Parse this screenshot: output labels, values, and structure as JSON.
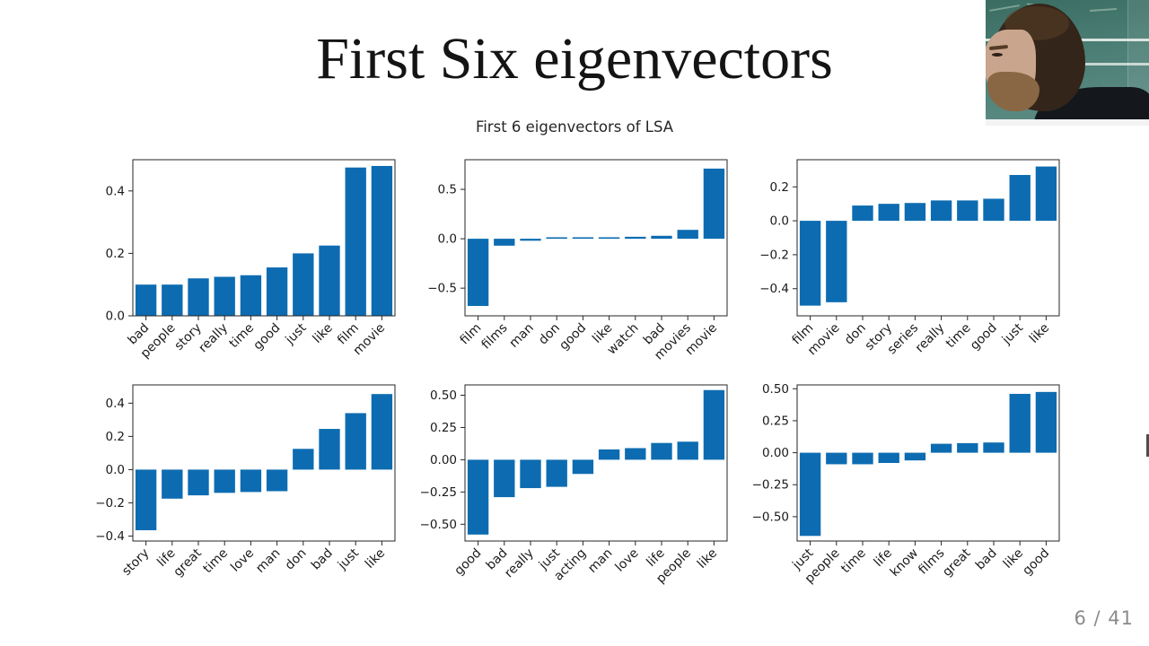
{
  "slide": {
    "title": "First Six eigenvectors"
  },
  "figure": {
    "suptitle": "First 6 eigenvectors of LSA"
  },
  "footer": {
    "page_indicator": "6 / 41"
  },
  "style": {
    "bar_color": "#0d6cb1",
    "axis_color": "#262626",
    "text_color": "#1a1a1a"
  },
  "chart_data": [
    {
      "type": "bar",
      "subplot": "row1-col1",
      "categories": [
        "bad",
        "people",
        "story",
        "really",
        "time",
        "good",
        "just",
        "like",
        "film",
        "movie"
      ],
      "values": [
        0.1,
        0.1,
        0.12,
        0.125,
        0.13,
        0.155,
        0.2,
        0.225,
        0.475,
        0.48
      ],
      "title": "",
      "xlabel": "",
      "ylabel": "",
      "ylim": [
        0,
        0.5
      ],
      "yticks": [
        0.0,
        0.2,
        0.4
      ],
      "ytick_decimals": 1,
      "grid": false,
      "legend": "none"
    },
    {
      "type": "bar",
      "subplot": "row1-col2",
      "categories": [
        "film",
        "films",
        "man",
        "don",
        "good",
        "like",
        "watch",
        "bad",
        "movies",
        "movie"
      ],
      "values": [
        -0.68,
        -0.07,
        -0.02,
        0.015,
        0.015,
        0.015,
        0.02,
        0.03,
        0.09,
        0.71
      ],
      "title": "",
      "xlabel": "",
      "ylabel": "",
      "ylim": [
        -0.78,
        0.8
      ],
      "yticks": [
        -0.5,
        0.0,
        0.5
      ],
      "ytick_decimals": 1,
      "grid": false,
      "legend": "none"
    },
    {
      "type": "bar",
      "subplot": "row1-col3",
      "categories": [
        "film",
        "movie",
        "don",
        "story",
        "series",
        "really",
        "time",
        "good",
        "just",
        "like"
      ],
      "values": [
        -0.5,
        -0.48,
        0.09,
        0.1,
        0.105,
        0.12,
        0.12,
        0.13,
        0.27,
        0.32
      ],
      "title": "",
      "xlabel": "",
      "ylabel": "",
      "ylim": [
        -0.56,
        0.36
      ],
      "yticks": [
        -0.4,
        -0.2,
        0.0,
        0.2
      ],
      "ytick_decimals": 1,
      "grid": false,
      "legend": "none"
    },
    {
      "type": "bar",
      "subplot": "row2-col1",
      "categories": [
        "story",
        "life",
        "great",
        "time",
        "love",
        "man",
        "don",
        "bad",
        "just",
        "like"
      ],
      "values": [
        -0.365,
        -0.175,
        -0.155,
        -0.14,
        -0.135,
        -0.13,
        0.125,
        0.245,
        0.34,
        0.455
      ],
      "title": "",
      "xlabel": "",
      "ylabel": "",
      "ylim": [
        -0.43,
        0.51
      ],
      "yticks": [
        -0.4,
        -0.2,
        0.0,
        0.2,
        0.4
      ],
      "ytick_decimals": 1,
      "grid": false,
      "legend": "none"
    },
    {
      "type": "bar",
      "subplot": "row2-col2",
      "categories": [
        "good",
        "bad",
        "really",
        "just",
        "acting",
        "man",
        "love",
        "life",
        "people",
        "like"
      ],
      "values": [
        -0.58,
        -0.29,
        -0.22,
        -0.21,
        -0.11,
        0.08,
        0.09,
        0.13,
        0.14,
        0.54
      ],
      "title": "",
      "xlabel": "",
      "ylabel": "",
      "ylim": [
        -0.63,
        0.58
      ],
      "yticks": [
        -0.5,
        -0.25,
        0.0,
        0.25,
        0.5
      ],
      "ytick_decimals": 2,
      "grid": false,
      "legend": "none"
    },
    {
      "type": "bar",
      "subplot": "row2-col3",
      "categories": [
        "just",
        "people",
        "time",
        "life",
        "know",
        "films",
        "great",
        "bad",
        "like",
        "good"
      ],
      "values": [
        -0.65,
        -0.09,
        -0.09,
        -0.08,
        -0.06,
        0.07,
        0.075,
        0.08,
        0.46,
        0.475
      ],
      "title": "",
      "xlabel": "",
      "ylabel": "",
      "ylim": [
        -0.69,
        0.53
      ],
      "yticks": [
        -0.5,
        -0.25,
        0.0,
        0.25,
        0.5
      ],
      "ytick_decimals": 2,
      "grid": false,
      "legend": "none"
    }
  ]
}
